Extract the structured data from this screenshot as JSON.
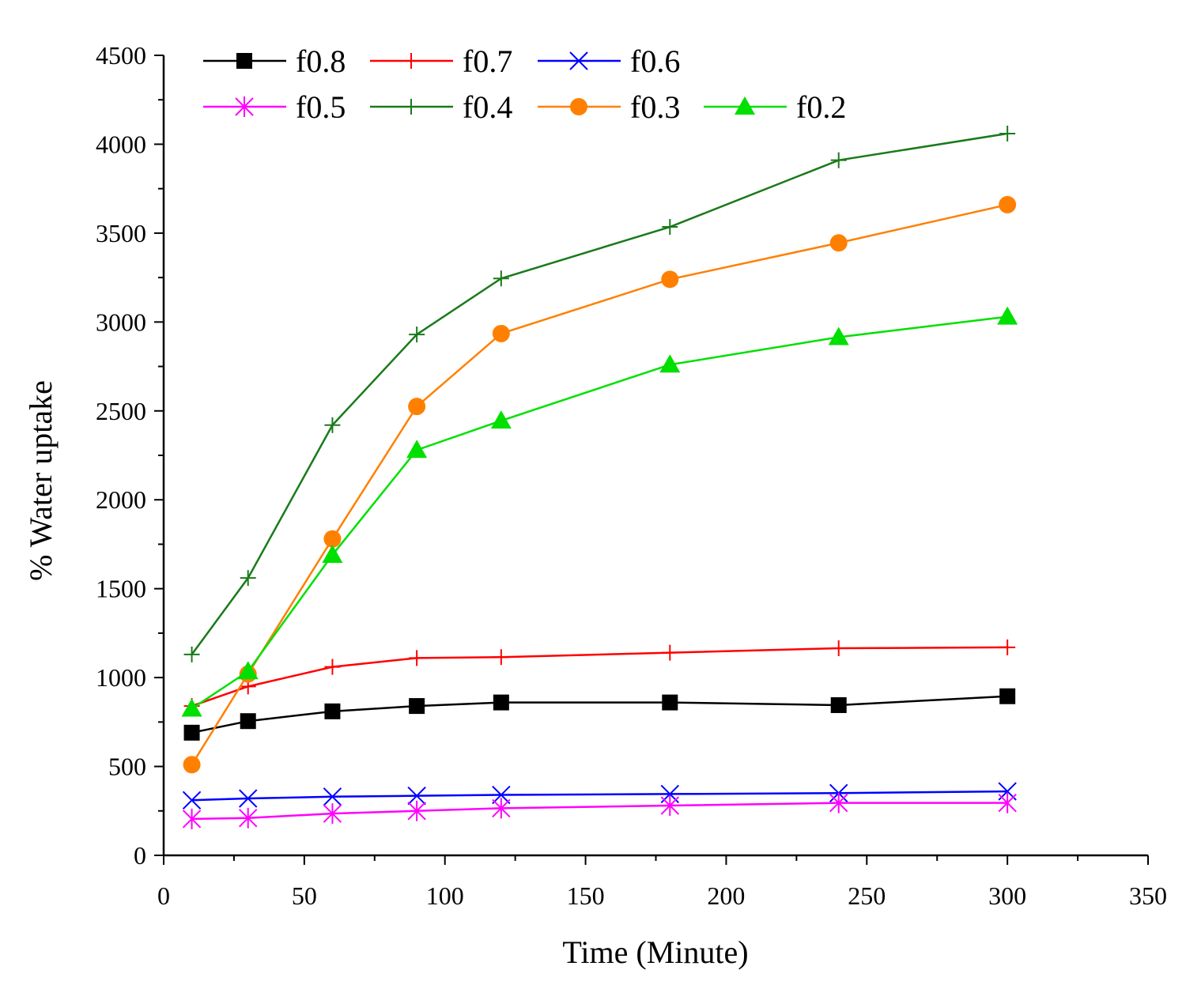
{
  "chart_data": {
    "type": "line",
    "title": "",
    "xlabel": "Time (Minute)",
    "ylabel": "% Water uptake",
    "xlim": [
      0,
      350
    ],
    "ylim": [
      0,
      4500
    ],
    "x_ticks": [
      0,
      50,
      100,
      150,
      200,
      250,
      300,
      350
    ],
    "y_ticks": [
      0,
      500,
      1000,
      1500,
      2000,
      2500,
      3000,
      3500,
      4000,
      4500
    ],
    "x_tick_labels": [
      "0",
      "50",
      "100",
      "150",
      "200",
      "250",
      "300",
      "350"
    ],
    "y_tick_labels": [
      "0",
      "500",
      "1000",
      "1500",
      "2000",
      "2500",
      "3000",
      "3500",
      "4000",
      "4500"
    ],
    "grid": false,
    "legend_position": "top-left",
    "x": [
      10,
      30,
      60,
      90,
      120,
      180,
      240,
      300
    ],
    "series": [
      {
        "name": "f0.8",
        "color": "#000000",
        "marker": "square",
        "values": [
          690,
          755,
          810,
          840,
          860,
          860,
          845,
          895
        ]
      },
      {
        "name": "f0.7",
        "color": "#ff0000",
        "marker": "plus",
        "values": [
          840,
          950,
          1060,
          1110,
          1115,
          1140,
          1165,
          1170
        ]
      },
      {
        "name": "f0.6",
        "color": "#0000ff",
        "marker": "x",
        "values": [
          310,
          320,
          330,
          335,
          340,
          345,
          350,
          360
        ]
      },
      {
        "name": "f0.5",
        "color": "#ff00ff",
        "marker": "asterisk",
        "values": [
          205,
          210,
          235,
          250,
          265,
          280,
          295,
          295
        ]
      },
      {
        "name": "f0.4",
        "color": "#1a7a1a",
        "marker": "plus",
        "values": [
          1130,
          1560,
          2420,
          2930,
          3245,
          3535,
          3910,
          4060
        ]
      },
      {
        "name": "f0.3",
        "color": "#ff8000",
        "marker": "circle",
        "values": [
          510,
          1020,
          1780,
          2525,
          2935,
          3240,
          3445,
          3660
        ]
      },
      {
        "name": "f0.2",
        "color": "#00e000",
        "marker": "triangle",
        "values": [
          825,
          1035,
          1690,
          2280,
          2445,
          2760,
          2915,
          3030
        ]
      }
    ]
  }
}
